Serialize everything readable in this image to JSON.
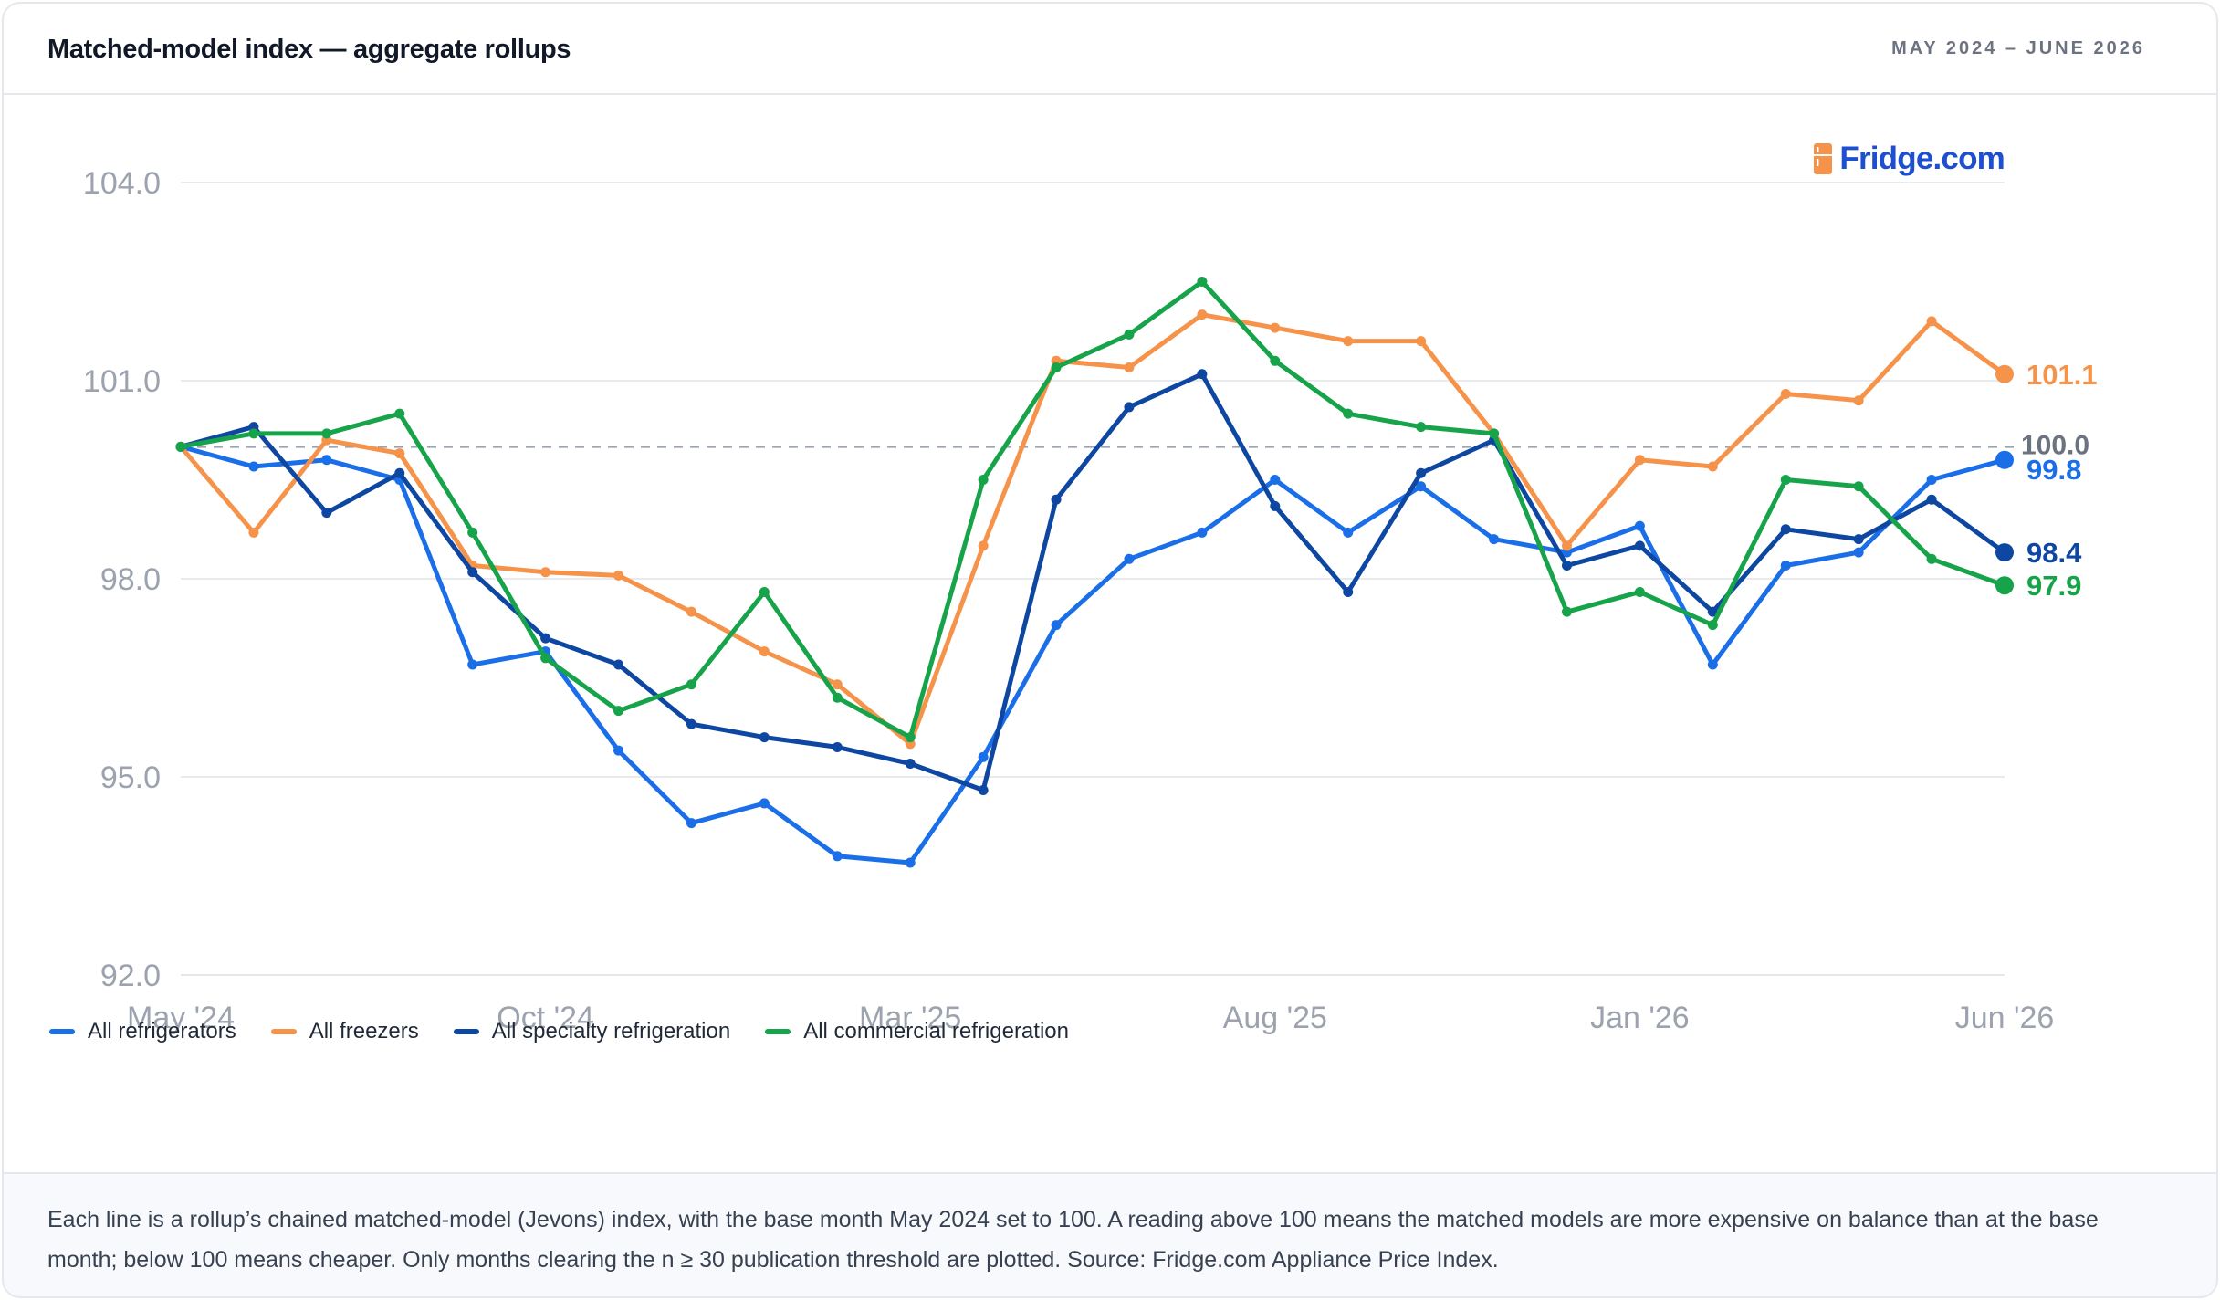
{
  "header": {
    "title": "Matched-model index — aggregate rollups",
    "range": "MAY 2024 – JUNE 2026"
  },
  "logo": {
    "text": "Fridge.com",
    "icon": "fridge-icon"
  },
  "footer": {
    "note": "Each line is a rollup’s chained matched-model (Jevons) index, with the base month May 2024 set to 100. A reading above 100 means the matched models are more expensive on balance than at the base month; below 100 means cheaper. Only months clearing the n ≥ 30 publication threshold are plotted. Source: Fridge.com Appliance Price Index."
  },
  "chart_data": {
    "type": "line",
    "x": [
      "2024-05",
      "2024-06",
      "2024-07",
      "2024-08",
      "2024-09",
      "2024-10",
      "2024-11",
      "2024-12",
      "2025-01",
      "2025-02",
      "2025-03",
      "2025-04",
      "2025-05",
      "2025-06",
      "2025-07",
      "2025-08",
      "2025-09",
      "2025-10",
      "2025-11",
      "2025-12",
      "2026-01",
      "2026-02",
      "2026-03",
      "2026-04",
      "2026-05",
      "2026-06"
    ],
    "x_tick_labels": [
      "May '24",
      "Oct '24",
      "Mar '25",
      "Aug '25",
      "Jan '26",
      "Jun '26"
    ],
    "x_tick_index": [
      0,
      5,
      10,
      15,
      20,
      25
    ],
    "ylim": [
      92,
      104
    ],
    "y_ticks": [
      "92.0",
      "95.0",
      "98.0",
      "101.0",
      "104.0"
    ],
    "baseline": 100,
    "baseline_label": "100.0",
    "grid": true,
    "legend_position": "bottom-left",
    "series": [
      {
        "name": "All refrigerators",
        "color": "#1a6fe8",
        "end_label": "99.8",
        "values": [
          100.0,
          99.7,
          99.8,
          99.5,
          96.7,
          96.9,
          95.4,
          94.3,
          94.6,
          93.8,
          93.7,
          95.3,
          97.3,
          98.3,
          98.7,
          99.5,
          98.7,
          99.4,
          98.6,
          98.4,
          98.8,
          96.7,
          98.2,
          98.4,
          99.5,
          99.8
        ]
      },
      {
        "name": "All freezers",
        "color": "#f6934a",
        "end_label": "101.1",
        "values": [
          100.0,
          98.7,
          100.1,
          99.9,
          98.2,
          98.1,
          98.05,
          97.5,
          96.9,
          96.4,
          95.5,
          98.5,
          101.3,
          101.2,
          102.0,
          101.8,
          101.6,
          101.6,
          100.2,
          98.5,
          99.8,
          99.7,
          100.8,
          100.7,
          101.9,
          101.1
        ]
      },
      {
        "name": "All specialty refrigeration",
        "color": "#0d47a1",
        "end_label": "98.4",
        "values": [
          100.0,
          100.3,
          99.0,
          99.6,
          98.1,
          97.1,
          96.7,
          95.8,
          95.6,
          95.45,
          95.2,
          94.8,
          99.2,
          100.6,
          101.1,
          99.1,
          97.8,
          99.6,
          100.1,
          98.2,
          98.5,
          97.5,
          98.75,
          98.6,
          99.2,
          98.4
        ]
      },
      {
        "name": "All commercial refrigeration",
        "color": "#16a34a",
        "end_label": "97.9",
        "values": [
          100.0,
          100.2,
          100.2,
          100.5,
          98.7,
          96.8,
          96.0,
          96.4,
          97.8,
          96.2,
          95.6,
          99.5,
          101.2,
          101.7,
          102.5,
          101.3,
          100.5,
          100.3,
          100.2,
          97.5,
          97.8,
          97.3,
          99.5,
          99.4,
          98.3,
          97.9
        ]
      }
    ]
  }
}
